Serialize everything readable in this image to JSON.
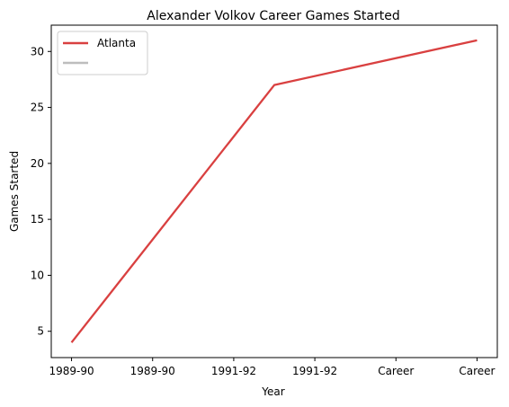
{
  "chart_data": {
    "type": "line",
    "title": "Alexander Volkov  Career Games Started",
    "xlabel": "Year",
    "ylabel": "Games Started",
    "categories": [
      "1989-90",
      "1989-90",
      "1991-92",
      "1991-92",
      "Career",
      "Career"
    ],
    "series": [
      {
        "name": "Atlanta",
        "color": "#d94040",
        "x": [
          0,
          2.5,
          5
        ],
        "values": [
          4,
          27,
          31
        ]
      },
      {
        "name": "",
        "color": "#bdbdbd",
        "x": [],
        "values": []
      }
    ],
    "yticks": [
      5,
      10,
      15,
      20,
      25,
      30
    ],
    "ylim": [
      2.65,
      32.35
    ],
    "xlim": [
      -0.25,
      5.25
    ],
    "grid": false,
    "legend": "top-left"
  }
}
